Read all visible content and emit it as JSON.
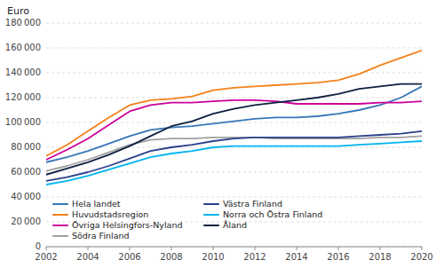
{
  "chart_data": {
    "type": "line",
    "ylabel": "Euro",
    "x": [
      2002,
      2003,
      2004,
      2005,
      2006,
      2007,
      2008,
      2009,
      2010,
      2011,
      2012,
      2013,
      2014,
      2015,
      2016,
      2017,
      2018,
      2019,
      2020
    ],
    "series": [
      {
        "name": "Hela landet",
        "color": "#3777B8",
        "values": [
          68000,
          72000,
          77000,
          83000,
          89000,
          94000,
          96000,
          97000,
          99000,
          101000,
          103000,
          104000,
          104000,
          105000,
          107000,
          110000,
          114000,
          120000,
          129000
        ]
      },
      {
        "name": "Huvudstadsregion",
        "color": "#F4801A",
        "values": [
          73000,
          82000,
          93000,
          104000,
          114000,
          118000,
          119000,
          121000,
          126000,
          128000,
          129000,
          130000,
          131000,
          132000,
          134000,
          139000,
          146000,
          152000,
          158000
        ]
      },
      {
        "name": "Övriga Helsingfors-Nyland",
        "color": "#CC0099",
        "values": [
          70000,
          78000,
          87000,
          98000,
          109000,
          114000,
          116000,
          116000,
          117000,
          118000,
          118000,
          117000,
          115000,
          115000,
          115000,
          115000,
          116000,
          116000,
          117000
        ]
      },
      {
        "name": "Södra Finland",
        "color": "#A0A0A0",
        "values": [
          61000,
          65000,
          70000,
          76000,
          82000,
          86000,
          87000,
          87000,
          88000,
          88000,
          88000,
          87000,
          87000,
          87000,
          87000,
          87000,
          88000,
          88000,
          89000
        ]
      },
      {
        "name": "Västra Finland",
        "color": "#2B3F8C",
        "values": [
          53000,
          56000,
          60000,
          65000,
          71000,
          77000,
          80000,
          82000,
          85000,
          87000,
          88000,
          88000,
          88000,
          88000,
          88000,
          89000,
          90000,
          91000,
          93000
        ]
      },
      {
        "name": "Norra och Östra Finland",
        "color": "#00B4F0",
        "values": [
          50000,
          53000,
          57000,
          62000,
          67000,
          72000,
          75000,
          77000,
          80000,
          81000,
          81000,
          81000,
          81000,
          81000,
          81000,
          82000,
          83000,
          84000,
          85000
        ]
      },
      {
        "name": "Åland",
        "color": "#0D2040",
        "values": [
          58000,
          63000,
          68000,
          74000,
          81000,
          89000,
          97000,
          101000,
          107000,
          111000,
          114000,
          116000,
          118000,
          120000,
          123000,
          127000,
          129000,
          131000,
          131000
        ]
      }
    ],
    "xlim": [
      2002,
      2020
    ],
    "xticks": [
      2002,
      2004,
      2006,
      2008,
      2010,
      2012,
      2014,
      2016,
      2018,
      2020
    ],
    "ylim": [
      0,
      180000
    ],
    "yticks": [
      0,
      {
        "value": 20000,
        "label": "20 000"
      },
      {
        "value": 40000,
        "label": "40 000"
      },
      {
        "value": 60000,
        "label": "60 000"
      },
      {
        "value": 80000,
        "label": "80 000"
      },
      {
        "value": 100000,
        "label": "100 000"
      },
      {
        "value": 120000,
        "label": "120 000"
      },
      {
        "value": 140000,
        "label": "140 000"
      },
      {
        "value": 160000,
        "label": "160 000"
      },
      {
        "value": 180000,
        "label": "180 000"
      }
    ],
    "grid": true,
    "legend": "lower left"
  }
}
